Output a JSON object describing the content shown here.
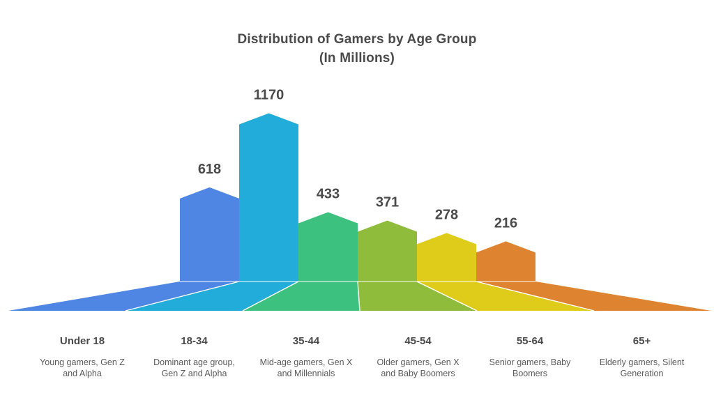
{
  "chart_data": {
    "type": "bar",
    "title_lines": [
      "Distribution of Gamers by Age Group",
      "(In Millions)"
    ],
    "categories": [
      "Under 18",
      "18-34",
      "35-44",
      "45-54",
      "55-64",
      "65+"
    ],
    "values": [
      618,
      1170,
      433,
      371,
      278,
      216
    ],
    "descriptions": [
      [
        "Young gamers, Gen Z",
        "and Alpha"
      ],
      [
        "Dominant age group,",
        "Gen Z and Alpha"
      ],
      [
        "Mid-age gamers, Gen X",
        "and Millennials"
      ],
      [
        "Older gamers, Gen X",
        "and Baby Boomers"
      ],
      [
        "Senior gamers, Baby",
        "Boomers"
      ],
      [
        "Elderly gamers, Silent",
        "Generation"
      ]
    ],
    "colors": [
      "#4f86e3",
      "#22acd9",
      "#3cc17f",
      "#8fbc3b",
      "#dfcc1a",
      "#de832f"
    ],
    "legend": "none",
    "grid": false
  }
}
